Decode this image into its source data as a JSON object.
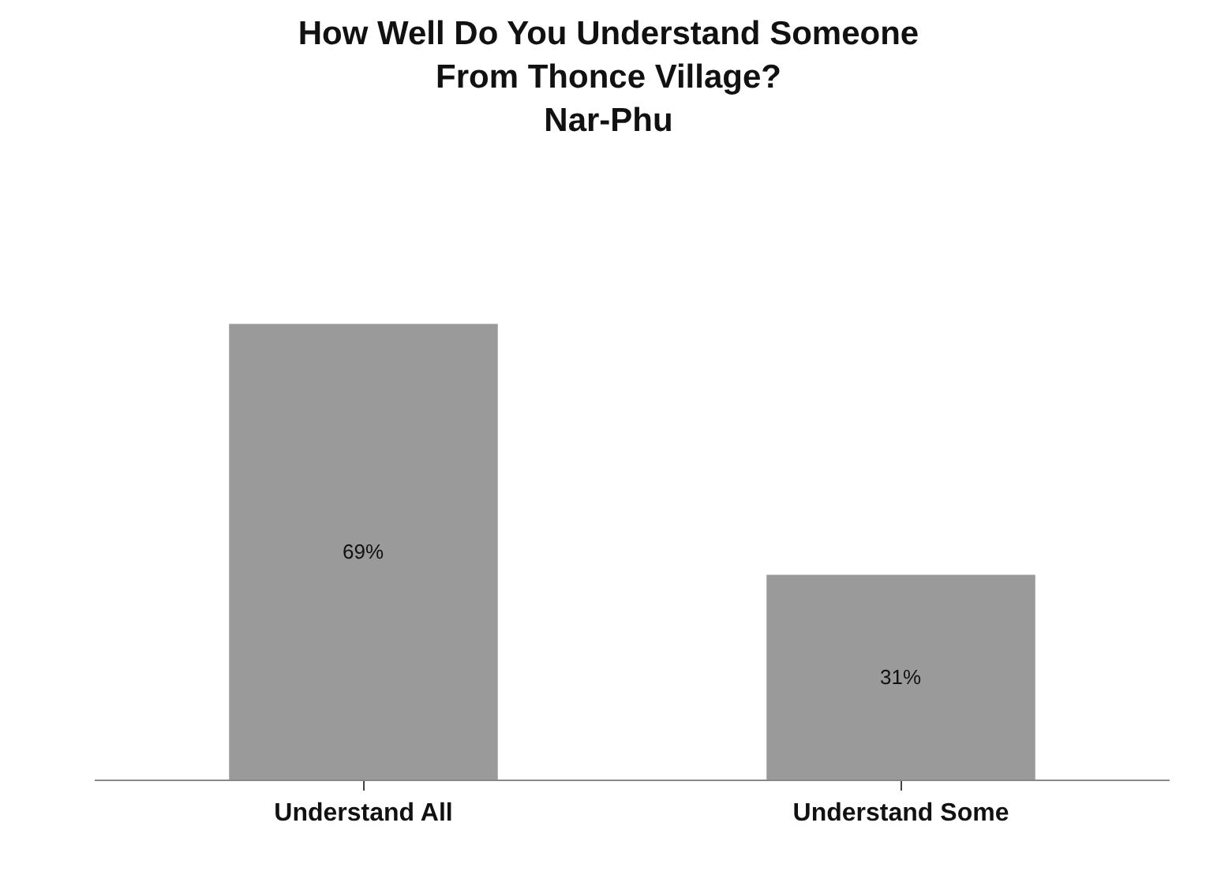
{
  "chart_data": {
    "type": "bar",
    "title": "How Well Do You Understand Someone\nFrom Thonce Village?\nNar-Phu",
    "categories": [
      "Understand All",
      "Understand Some"
    ],
    "values": [
      69,
      31
    ],
    "value_labels": [
      "69%",
      "31%"
    ],
    "color": "#9a9a9a",
    "legend": false
  }
}
